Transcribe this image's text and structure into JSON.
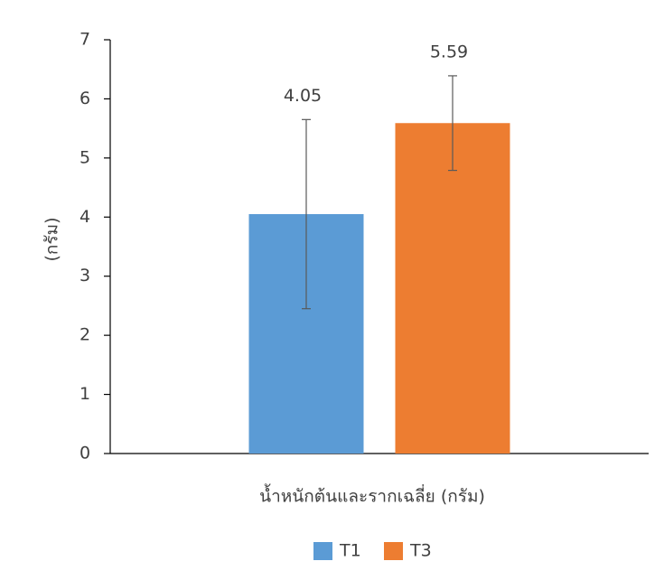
{
  "chart_data": {
    "type": "bar",
    "x_label": "น้ำหนักต้นและรากเฉลี่ย (กรัม)",
    "y_label": "(กรัม)",
    "categories": [
      null
    ],
    "series": [
      {
        "name": "T1",
        "color": "#5b9bd5",
        "values": [
          4.05
        ],
        "errors": [
          1.6
        ]
      },
      {
        "name": "T3",
        "color": "#ed7d31",
        "values": [
          5.59
        ],
        "errors": [
          0.8
        ]
      }
    ],
    "ylim": [
      0,
      7
    ],
    "yticks": [
      0,
      1,
      2,
      3,
      4,
      5,
      6,
      7
    ],
    "grid": false,
    "legend": "bottom"
  }
}
